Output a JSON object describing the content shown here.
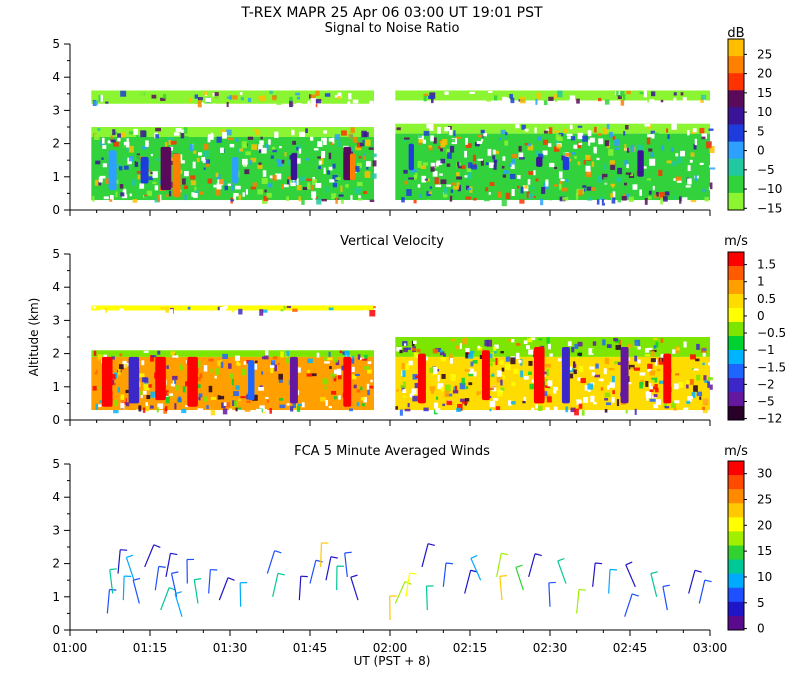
{
  "chart_data": {
    "type": "multi-panel radar time-height",
    "title": "T-REX  MAPR 25 Apr 06  03:00 UT  19:01  PST",
    "xlabel": "UT  (PST + 8)",
    "x_ticks": [
      "01:00",
      "01:15",
      "01:30",
      "01:45",
      "02:00",
      "02:15",
      "02:30",
      "02:45",
      "03:00"
    ],
    "x_range_minutes": [
      0,
      120
    ],
    "ylabel": "Altitude (km)",
    "y_ticks": [
      "0",
      "1",
      "2",
      "3",
      "4",
      "5"
    ],
    "ylim": [
      0,
      5
    ],
    "data_gap_minutes": [
      57.5,
      60.5
    ],
    "panels": [
      {
        "title": "Signal to Noise Ratio",
        "units": "dB",
        "colorbar": {
          "labels": [
            "25",
            "20",
            "15",
            "10",
            "5",
            "0",
            "−5",
            "−10",
            "−15"
          ],
          "colors": [
            "#ffbf00",
            "#ff7f00",
            "#ff3300",
            "#5a0a5a",
            "#3a1496",
            "#1e3cdc",
            "#2ea0ff",
            "#22c8a0",
            "#31d23c",
            "#8cf531"
          ]
        },
        "layers": [
          {
            "x0": 4,
            "x1": 57,
            "y0": 3.2,
            "y1": 3.6,
            "color": "#8cf531"
          },
          {
            "x0": 4,
            "x1": 57,
            "y0": 2.2,
            "y1": 2.5,
            "color": "#8cf531"
          },
          {
            "x0": 4,
            "x1": 57,
            "y0": 0.3,
            "y1": 2.2,
            "color": "#31d23c"
          },
          {
            "x0": 61,
            "x1": 120,
            "y0": 3.3,
            "y1": 3.6,
            "color": "#8cf531"
          },
          {
            "x0": 61,
            "x1": 120,
            "y0": 2.3,
            "y1": 2.6,
            "color": "#8cf531"
          },
          {
            "x0": 61,
            "x1": 120,
            "y0": 0.3,
            "y1": 2.3,
            "color": "#31d23c"
          }
        ],
        "features": [
          {
            "x": 8,
            "y0": 0.6,
            "y1": 1.8,
            "w": 1.5,
            "color": "#2ea0ff"
          },
          {
            "x": 14,
            "y0": 0.8,
            "y1": 1.6,
            "w": 1.5,
            "color": "#1e3cdc"
          },
          {
            "x": 18,
            "y0": 0.6,
            "y1": 1.9,
            "w": 2,
            "color": "#5a0a5a"
          },
          {
            "x": 20,
            "y0": 0.4,
            "y1": 1.7,
            "w": 1.5,
            "color": "#ff7f00"
          },
          {
            "x": 31,
            "y0": 0.8,
            "y1": 1.6,
            "w": 1.2,
            "color": "#2ea0ff"
          },
          {
            "x": 42,
            "y0": 0.9,
            "y1": 1.7,
            "w": 1.2,
            "color": "#3a1496"
          },
          {
            "x": 52,
            "y0": 0.9,
            "y1": 1.9,
            "w": 1.5,
            "color": "#5a0a5a"
          },
          {
            "x": 53,
            "y0": 0.9,
            "y1": 1.7,
            "w": 1,
            "color": "#ff7f00"
          },
          {
            "x": 64,
            "y0": 1.2,
            "y1": 2.0,
            "w": 1,
            "color": "#1e3cdc"
          },
          {
            "x": 88,
            "y0": 1.3,
            "y1": 1.6,
            "w": 1.2,
            "color": "#3a1496"
          },
          {
            "x": 93,
            "y0": 1.2,
            "y1": 1.6,
            "w": 1.2,
            "color": "#1e3cdc"
          },
          {
            "x": 107,
            "y0": 1.0,
            "y1": 1.8,
            "w": 1.2,
            "color": "#3a1496"
          }
        ]
      },
      {
        "title": "Vertical Velocity",
        "units": "m/s",
        "colorbar": {
          "labels": [
            "1.5",
            "1",
            "0.5",
            "0",
            "−0.5",
            "−1",
            "−1.5",
            "−2",
            "−5",
            "−12"
          ],
          "colors": [
            "#ff0000",
            "#ff5a00",
            "#ffa000",
            "#ffdc00",
            "#ffff00",
            "#7ce600",
            "#00d232",
            "#00b4ff",
            "#1e64ff",
            "#3c28c8",
            "#6418a0",
            "#280028"
          ]
        },
        "layers": [
          {
            "x0": 4,
            "x1": 57,
            "y0": 3.3,
            "y1": 3.45,
            "color": "#ffff00"
          },
          {
            "x0": 4,
            "x1": 57,
            "y0": 1.9,
            "y1": 2.1,
            "color": "#7ce600"
          },
          {
            "x0": 4,
            "x1": 57,
            "y0": 0.3,
            "y1": 1.9,
            "color": "#ffa000"
          },
          {
            "x0": 61,
            "x1": 120,
            "y0": 1.9,
            "y1": 2.5,
            "color": "#7ce600"
          },
          {
            "x0": 61,
            "x1": 120,
            "y0": 0.3,
            "y1": 1.9,
            "color": "#ffdc00"
          }
        ],
        "features": [
          {
            "x": 7,
            "y0": 0.4,
            "y1": 1.9,
            "w": 2,
            "color": "#ff0000"
          },
          {
            "x": 12,
            "y0": 0.5,
            "y1": 1.9,
            "w": 2,
            "color": "#3c28c8"
          },
          {
            "x": 17,
            "y0": 0.6,
            "y1": 1.9,
            "w": 2,
            "color": "#ff0000"
          },
          {
            "x": 23,
            "y0": 0.4,
            "y1": 1.9,
            "w": 2,
            "color": "#ff0000"
          },
          {
            "x": 34,
            "y0": 0.6,
            "y1": 1.8,
            "w": 1.2,
            "color": "#1e64ff"
          },
          {
            "x": 42,
            "y0": 0.5,
            "y1": 1.9,
            "w": 1.5,
            "color": "#6418a0"
          },
          {
            "x": 52,
            "y0": 0.4,
            "y1": 1.9,
            "w": 1.5,
            "color": "#ff0000"
          },
          {
            "x": 66,
            "y0": 0.5,
            "y1": 2.0,
            "w": 1.5,
            "color": "#ff0000"
          },
          {
            "x": 78,
            "y0": 0.6,
            "y1": 2.1,
            "w": 1.5,
            "color": "#ff0000"
          },
          {
            "x": 88,
            "y0": 0.5,
            "y1": 2.2,
            "w": 2,
            "color": "#ff0000"
          },
          {
            "x": 93,
            "y0": 0.5,
            "y1": 2.2,
            "w": 1.5,
            "color": "#3c28c8"
          },
          {
            "x": 104,
            "y0": 0.5,
            "y1": 2.2,
            "w": 1.5,
            "color": "#6418a0"
          },
          {
            "x": 112,
            "y0": 0.5,
            "y1": 2.0,
            "w": 1.5,
            "color": "#ff0000"
          }
        ]
      },
      {
        "title": "FCA 5 Minute Averaged Winds",
        "units": "m/s",
        "colorbar": {
          "labels": [
            "30",
            "25",
            "20",
            "15",
            "10",
            "5",
            "0"
          ],
          "colors": [
            "#ff0000",
            "#ff4a00",
            "#ff8a00",
            "#ffc800",
            "#ffff00",
            "#a0f000",
            "#32d232",
            "#00c896",
            "#00aaff",
            "#1e50ff",
            "#1e14c8",
            "#5a0a8c"
          ]
        },
        "barbs": [
          {
            "t": 7,
            "alt": 0.5,
            "color": "#1e50ff"
          },
          {
            "t": 8,
            "alt": 1.1,
            "color": "#00c896"
          },
          {
            "t": 9,
            "alt": 1.7,
            "color": "#1e14c8"
          },
          {
            "t": 10,
            "alt": 0.9,
            "color": "#00aaff"
          },
          {
            "t": 12,
            "alt": 1.5,
            "color": "#00aaff"
          },
          {
            "t": 13,
            "alt": 0.8,
            "color": "#1e50ff"
          },
          {
            "t": 14,
            "alt": 1.9,
            "color": "#1e14c8"
          },
          {
            "t": 16,
            "alt": 1.2,
            "color": "#1e50ff"
          },
          {
            "t": 17,
            "alt": 0.6,
            "color": "#00c896"
          },
          {
            "t": 18,
            "alt": 1.6,
            "color": "#1e14c8"
          },
          {
            "t": 20,
            "alt": 1.0,
            "color": "#1e50ff"
          },
          {
            "t": 21,
            "alt": 0.4,
            "color": "#00aaff"
          },
          {
            "t": 22,
            "alt": 1.4,
            "color": "#1e50ff"
          },
          {
            "t": 24,
            "alt": 0.8,
            "color": "#00c896"
          },
          {
            "t": 26,
            "alt": 1.1,
            "color": "#1e50ff"
          },
          {
            "t": 28,
            "alt": 0.9,
            "color": "#1e14c8"
          },
          {
            "t": 32,
            "alt": 0.7,
            "color": "#00aaff"
          },
          {
            "t": 37,
            "alt": 1.7,
            "color": "#1e50ff"
          },
          {
            "t": 38,
            "alt": 1.0,
            "color": "#00c896"
          },
          {
            "t": 43,
            "alt": 0.9,
            "color": "#1e14c8"
          },
          {
            "t": 45,
            "alt": 1.4,
            "color": "#1e50ff"
          },
          {
            "t": 47,
            "alt": 1.9,
            "color": "#ffc800"
          },
          {
            "t": 48,
            "alt": 1.5,
            "color": "#1e14c8"
          },
          {
            "t": 50,
            "alt": 1.2,
            "color": "#00c896"
          },
          {
            "t": 52,
            "alt": 1.6,
            "color": "#1e50ff"
          },
          {
            "t": 54,
            "alt": 0.9,
            "color": "#1e14c8"
          },
          {
            "t": 60,
            "alt": 0.3,
            "color": "#ffc800"
          },
          {
            "t": 61,
            "alt": 0.8,
            "color": "#a0f000"
          },
          {
            "t": 63,
            "alt": 1.0,
            "color": "#ffff00"
          },
          {
            "t": 66,
            "alt": 1.9,
            "color": "#1e14c8"
          },
          {
            "t": 67,
            "alt": 0.6,
            "color": "#00c896"
          },
          {
            "t": 70,
            "alt": 1.3,
            "color": "#1e50ff"
          },
          {
            "t": 74,
            "alt": 1.1,
            "color": "#1e14c8"
          },
          {
            "t": 77,
            "alt": 1.5,
            "color": "#00aaff"
          },
          {
            "t": 80,
            "alt": 1.6,
            "color": "#a0f000"
          },
          {
            "t": 81,
            "alt": 0.9,
            "color": "#ffc800"
          },
          {
            "t": 85,
            "alt": 1.2,
            "color": "#32d232"
          },
          {
            "t": 86,
            "alt": 1.6,
            "color": "#1e14c8"
          },
          {
            "t": 90,
            "alt": 0.7,
            "color": "#1e50ff"
          },
          {
            "t": 93,
            "alt": 1.4,
            "color": "#00c896"
          },
          {
            "t": 95,
            "alt": 0.5,
            "color": "#a0f000"
          },
          {
            "t": 98,
            "alt": 1.3,
            "color": "#1e14c8"
          },
          {
            "t": 101,
            "alt": 1.1,
            "color": "#00aaff"
          },
          {
            "t": 104,
            "alt": 0.4,
            "color": "#1e50ff"
          },
          {
            "t": 106,
            "alt": 1.3,
            "color": "#1e14c8"
          },
          {
            "t": 110,
            "alt": 1.0,
            "color": "#00c896"
          },
          {
            "t": 112,
            "alt": 0.6,
            "color": "#1e50ff"
          },
          {
            "t": 116,
            "alt": 1.1,
            "color": "#1e14c8"
          },
          {
            "t": 118,
            "alt": 0.8,
            "color": "#1e50ff"
          }
        ]
      }
    ]
  }
}
